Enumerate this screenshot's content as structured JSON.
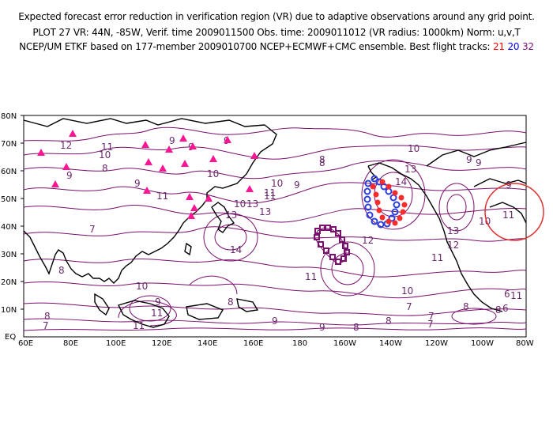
{
  "header": {
    "line1": "Expected forecast error reduction in verification region (VR) due to adaptive observations around any grid point.",
    "line2": "PLOT 27 VR: 44N, -85W, Verif. time 2009011500 Obs. time: 2009011012 (VR radius: 1000km) Norm: u,v,T",
    "line3_prefix": "NCEP/UM ETKF based on 177-member 2009010700 NCEP+ECMWF+CMC ensemble. Best flight tracks:",
    "track_a": "21",
    "track_b": "20",
    "track_c": "32"
  },
  "colors": {
    "contour": "#7a0f6e",
    "coast": "#000000",
    "track_21": "#ff2a2a",
    "track_20": "#2b3fd8",
    "track_32": "#7a0f6e",
    "triangles": "#ff1493",
    "vr_circle": "#e03030"
  },
  "axes": {
    "lat_labels": [
      "80N",
      "70N",
      "60N",
      "50N",
      "40N",
      "30N",
      "20N",
      "10N",
      "EQ"
    ],
    "lon_labels": [
      "60E",
      "80E",
      "100E",
      "120E",
      "140E",
      "160E",
      "180",
      "160W",
      "140W",
      "120W",
      "100W",
      "80W"
    ]
  },
  "contour_labels": [
    "12",
    "10",
    "11",
    "8",
    "9",
    "9",
    "9",
    "10",
    "11",
    "9",
    "9",
    "10",
    "13",
    "14",
    "13",
    "13",
    "11",
    "10",
    "11",
    "9",
    "8",
    "14",
    "12",
    "13",
    "10",
    "13",
    "11",
    "12",
    "11",
    "10",
    "7",
    "8",
    "8",
    "9",
    "11",
    "11",
    "9",
    "9",
    "8",
    "7",
    "8",
    "7",
    "6",
    "7",
    "8",
    "9",
    "6",
    "8",
    "11",
    "9",
    "8",
    "9",
    "10",
    "10",
    "7",
    "8",
    "11"
  ]
}
